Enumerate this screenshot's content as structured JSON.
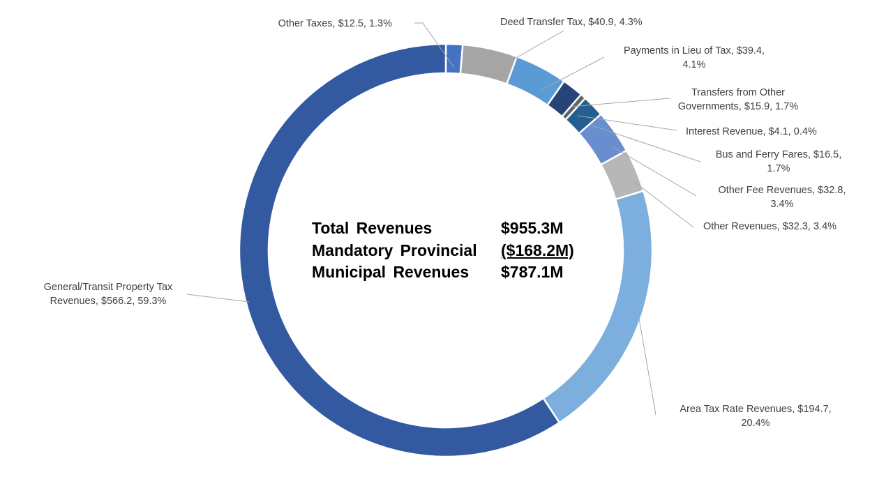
{
  "summary": {
    "rows": [
      {
        "label": "Total Revenues",
        "value": "$955.3M",
        "underline": false
      },
      {
        "label": "Mandatory Provincial",
        "value": "($168.2M)",
        "underline": true
      },
      {
        "label": "Municipal Revenues",
        "value": "$787.1M",
        "underline": false
      }
    ]
  },
  "chart_data": {
    "type": "pie",
    "variant": "donut",
    "total": 955.3,
    "slices": [
      {
        "name": "Other Taxes",
        "value": 12.5,
        "percent": 1.3,
        "color": "#4472c4",
        "label_lines": [
          "Other Taxes, $12.5, 1.3%"
        ],
        "label_anchor": "end"
      },
      {
        "name": "Deed Transfer Tax",
        "value": 40.9,
        "percent": 4.3,
        "color": "#a5a5a5",
        "label_lines": [
          "Deed Transfer Tax, $40.9, 4.3%"
        ],
        "label_anchor": "start"
      },
      {
        "name": "Payments in Lieu of Tax",
        "value": 39.4,
        "percent": 4.1,
        "color": "#5b9bd5",
        "label_lines": [
          "Payments in Lieu of Tax, $39.4,",
          "4.1%"
        ],
        "label_anchor": "middle"
      },
      {
        "name": "Transfers from Other Governments",
        "value": 15.9,
        "percent": 1.7,
        "color": "#264478",
        "label_lines": [
          "Transfers from Other",
          "Governments, $15.9, 1.7%"
        ],
        "label_anchor": "middle"
      },
      {
        "name": "Interest Revenue",
        "value": 4.1,
        "percent": 0.4,
        "color": "#636363",
        "label_lines": [
          "Interest Revenue, $4.1, 0.4%"
        ],
        "label_anchor": "start"
      },
      {
        "name": "Bus and Ferry Fares",
        "value": 16.5,
        "percent": 1.7,
        "color": "#255e91",
        "label_lines": [
          "Bus and Ferry Fares, $16.5,",
          "1.7%"
        ],
        "label_anchor": "middle"
      },
      {
        "name": "Other Fee Revenues",
        "value": 32.8,
        "percent": 3.4,
        "color": "#698ed0",
        "label_lines": [
          "Other Fee Revenues, $32.8,",
          "3.4%"
        ],
        "label_anchor": "middle"
      },
      {
        "name": "Other Revenues",
        "value": 32.3,
        "percent": 3.4,
        "color": "#b7b7b7",
        "label_lines": [
          "Other Revenues, $32.3, 3.4%"
        ],
        "label_anchor": "start"
      },
      {
        "name": "Area Tax Rate Revenues",
        "value": 194.7,
        "percent": 20.4,
        "color": "#7cafdd",
        "label_lines": [
          "Area Tax Rate Revenues, $194.7,",
          "20.4%"
        ],
        "label_anchor": "middle"
      },
      {
        "name": "General/Transit Property Tax Revenues",
        "value": 566.2,
        "percent": 59.3,
        "color": "#335aa1",
        "label_lines": [
          "General/Transit Property Tax",
          "Revenues, $566.2, 59.3%"
        ],
        "label_anchor": "middle"
      }
    ],
    "legend": "none",
    "data_labels": "outside with leader lines"
  }
}
